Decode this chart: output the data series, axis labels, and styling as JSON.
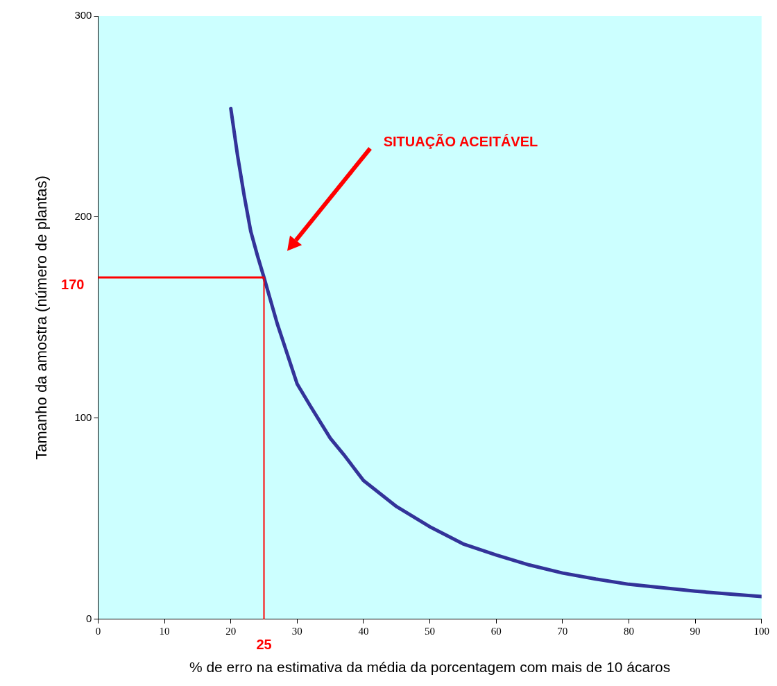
{
  "chart_data": {
    "type": "line",
    "xlabel": "% de erro na estimativa da média da porcentagem com mais de 10 ácaros",
    "ylabel": "Tamanho da amostra (número de plantas)",
    "x": [
      20,
      21,
      22,
      23,
      24,
      25,
      27,
      28,
      30,
      32,
      35,
      37,
      40,
      45,
      50,
      55,
      60,
      65,
      70,
      75,
      80,
      85,
      90,
      95,
      100
    ],
    "series": [
      {
        "color": "#333399",
        "values": [
          254,
          231,
          211,
          193,
          181,
          170,
          147,
          137,
          117,
          106,
          90,
          82,
          69,
          56,
          46,
          37.5,
          32,
          27,
          23,
          20,
          17.4,
          15.7,
          14,
          12.6,
          11.3
        ]
      }
    ],
    "xlim": [
      0,
      100
    ],
    "xticks": [
      0,
      10,
      20,
      30,
      40,
      50,
      60,
      70,
      80,
      90,
      100
    ],
    "ylim": [
      0,
      300
    ],
    "yticks": [
      0,
      100,
      200,
      300
    ],
    "ref_lines": [
      {
        "axis": "y",
        "value": 170,
        "label": "170",
        "color": "#ff0000"
      },
      {
        "axis": "x",
        "value": 25,
        "label": "25",
        "color": "#ff0000"
      }
    ],
    "annotations": [
      "SITUAÇÃO ACEITÁVEL"
    ],
    "grid": false,
    "legend": false,
    "marker": "none",
    "line_style": "solid"
  }
}
